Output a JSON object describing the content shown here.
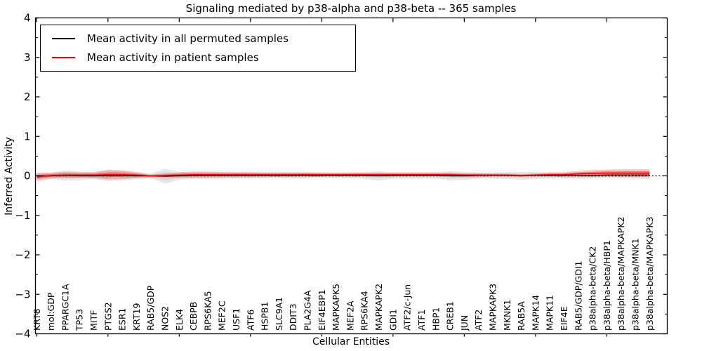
{
  "chart_data": {
    "type": "line",
    "title": "Signaling mediated by p38-alpha and p38-beta -- 365 samples",
    "xlabel": "Cellular Entities",
    "ylabel": "Inferred Activity",
    "ylim": [
      -4,
      4
    ],
    "yticks": [
      4,
      3,
      2,
      1,
      0,
      -1,
      -2,
      -3,
      -4
    ],
    "grid": false,
    "legend_position": "upper left",
    "frame": true,
    "zero_line": {
      "y": 0,
      "style": "dotted",
      "color": "#000000"
    },
    "categories": [
      "KRT8",
      "mol:GDP",
      "PPARGC1A",
      "TP53",
      "MITF",
      "PTGS2",
      "ESR1",
      "KRT19",
      "RAB5/GDP",
      "NOS2",
      "ELK4",
      "CEBPB",
      "RPS6KA5",
      "MEF2C",
      "USF1",
      "ATF6",
      "HSPB1",
      "SLC9A1",
      "DDIT3",
      "PLA2G4A",
      "EIF4EBP1",
      "MAPKAPK5",
      "MEF2A",
      "RPS6KA4",
      "MAPKAPK2",
      "GDI1",
      "ATF2/c-Jun",
      "ATF1",
      "HBP1",
      "CREB1",
      "JUN",
      "ATF2",
      "MAPKAPK3",
      "MKNK1",
      "RAB5A",
      "MAPK14",
      "MAPK11",
      "EIF4E",
      "RAB5/GDP/GDI1",
      "p38alpha-beta/CK2",
      "p38alpha-beta/HBP1",
      "p38alpha-beta/MAPKAPK2",
      "p38alpha-beta/MNK1",
      "p38alpha-beta/MAPKAPK3"
    ],
    "series": [
      {
        "name": "Mean activity in all permuted samples",
        "color": "#000000",
        "band_color": "#787878",
        "band_outer_alpha": 0.18,
        "band_inner_alpha": 0.15,
        "values": [
          0,
          0,
          0.01,
          0,
          0,
          0.01,
          0.01,
          0,
          0,
          -0.01,
          0,
          0.01,
          0.01,
          0.01,
          0.01,
          0.01,
          0.01,
          0.01,
          0.01,
          0.01,
          0.01,
          0.01,
          0.01,
          0.01,
          0,
          0.01,
          0.01,
          0.01,
          0.01,
          0,
          0,
          0.01,
          0.01,
          0.01,
          0,
          0.01,
          0.01,
          0.01,
          0.01,
          0.01,
          0.02,
          0.02,
          0.02,
          0.02
        ],
        "band_halfwidth": [
          0.06,
          0.08,
          0.13,
          0.11,
          0.08,
          0.14,
          0.12,
          0.08,
          0.06,
          0.19,
          0.1,
          0.08,
          0.08,
          0.08,
          0.07,
          0.07,
          0.07,
          0.07,
          0.08,
          0.08,
          0.07,
          0.07,
          0.07,
          0.08,
          0.12,
          0.08,
          0.08,
          0.08,
          0.08,
          0.12,
          0.1,
          0.08,
          0.08,
          0.09,
          0.1,
          0.09,
          0.08,
          0.08,
          0.08,
          0.08,
          0.08,
          0.08,
          0.09,
          0.1
        ]
      },
      {
        "name": "Mean activity in patient samples",
        "color": "#ff0000",
        "band_color": "#ff0000",
        "band_outer_alpha": 0.22,
        "band_inner_alpha": 0.33,
        "values": [
          -0.03,
          0.01,
          0.02,
          0.02,
          0.02,
          0.03,
          0.03,
          0.02,
          0,
          0.01,
          0.02,
          0.03,
          0.03,
          0.03,
          0.03,
          0.03,
          0.03,
          0.03,
          0.03,
          0.03,
          0.03,
          0.03,
          0.03,
          0.03,
          0.03,
          0.03,
          0.03,
          0.03,
          0.03,
          0.03,
          0.02,
          0.02,
          0.02,
          0.02,
          0.01,
          0.02,
          0.03,
          0.03,
          0.05,
          0.06,
          0.07,
          0.07,
          0.07,
          0.07
        ],
        "band_halfwidth": [
          0.11,
          0.07,
          0.08,
          0.07,
          0.08,
          0.12,
          0.11,
          0.08,
          0.03,
          0.05,
          0.07,
          0.08,
          0.08,
          0.07,
          0.07,
          0.07,
          0.06,
          0.06,
          0.06,
          0.06,
          0.05,
          0.05,
          0.05,
          0.05,
          0.05,
          0.05,
          0.05,
          0.05,
          0.05,
          0.05,
          0.05,
          0.05,
          0.04,
          0.04,
          0.03,
          0.04,
          0.05,
          0.06,
          0.08,
          0.09,
          0.09,
          0.1,
          0.1,
          0.1
        ]
      }
    ]
  }
}
